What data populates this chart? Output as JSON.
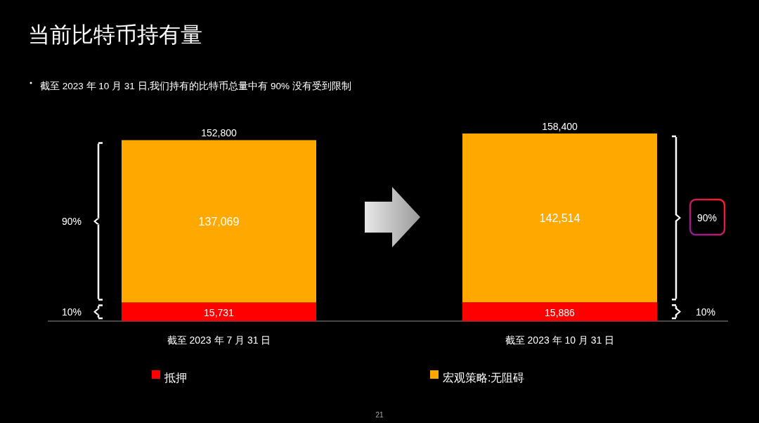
{
  "chart_data": {
    "type": "bar",
    "stacked": true,
    "title": "当前比特币持有量",
    "subtitle": "截至 2023 年 10 月 31 日,我们持有的比特币总量中有 90% 没有受到限制",
    "categories": [
      "截至 2023 年 7 月 31 日",
      "截至 2023 年 10 月 31 日"
    ],
    "series": [
      {
        "name": "抵押",
        "color": "#ff0000",
        "values": [
          15731,
          15886
        ],
        "value_labels": [
          "15,731",
          "15,886"
        ]
      },
      {
        "name": "宏观策略:无阻碍",
        "color": "#ffa800",
        "values": [
          137069,
          142514
        ],
        "value_labels": [
          "137,069",
          "142,514"
        ]
      }
    ],
    "totals": [
      "152,800",
      "158,400"
    ],
    "legend": "bottom",
    "annotations": [
      "90%",
      "10%",
      "90%",
      "10%",
      "21"
    ]
  }
}
